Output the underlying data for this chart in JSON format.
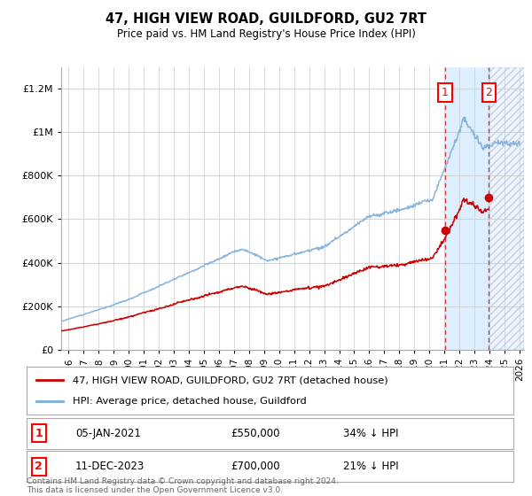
{
  "title": "47, HIGH VIEW ROAD, GUILDFORD, GU2 7RT",
  "subtitle": "Price paid vs. HM Land Registry's House Price Index (HPI)",
  "ylim": [
    0,
    1300000
  ],
  "yticks": [
    0,
    200000,
    400000,
    600000,
    800000,
    1000000,
    1200000
  ],
  "ytick_labels": [
    "£0",
    "£200K",
    "£400K",
    "£600K",
    "£800K",
    "£1M",
    "£1.2M"
  ],
  "xlim_start": 1995.5,
  "xlim_end": 2026.3,
  "hpi_color": "#7aaddb",
  "price_color": "#cc0000",
  "marker1_date": 2021.04,
  "marker1_price": 550000,
  "marker1_label": "05-JAN-2021",
  "marker1_amount": "£550,000",
  "marker1_pct": "34% ↓ HPI",
  "marker2_date": 2023.96,
  "marker2_price": 700000,
  "marker2_label": "11-DEC-2023",
  "marker2_amount": "£700,000",
  "marker2_pct": "21% ↓ HPI",
  "legend_line1": "47, HIGH VIEW ROAD, GUILDFORD, GU2 7RT (detached house)",
  "legend_line2": "HPI: Average price, detached house, Guildford",
  "footnote": "Contains HM Land Registry data © Crown copyright and database right 2024.\nThis data is licensed under the Open Government Licence v3.0.",
  "background_color": "#ffffff",
  "grid_color": "#cccccc",
  "shade_color": "#ddeeff",
  "box1_label": "1",
  "box2_label": "2"
}
